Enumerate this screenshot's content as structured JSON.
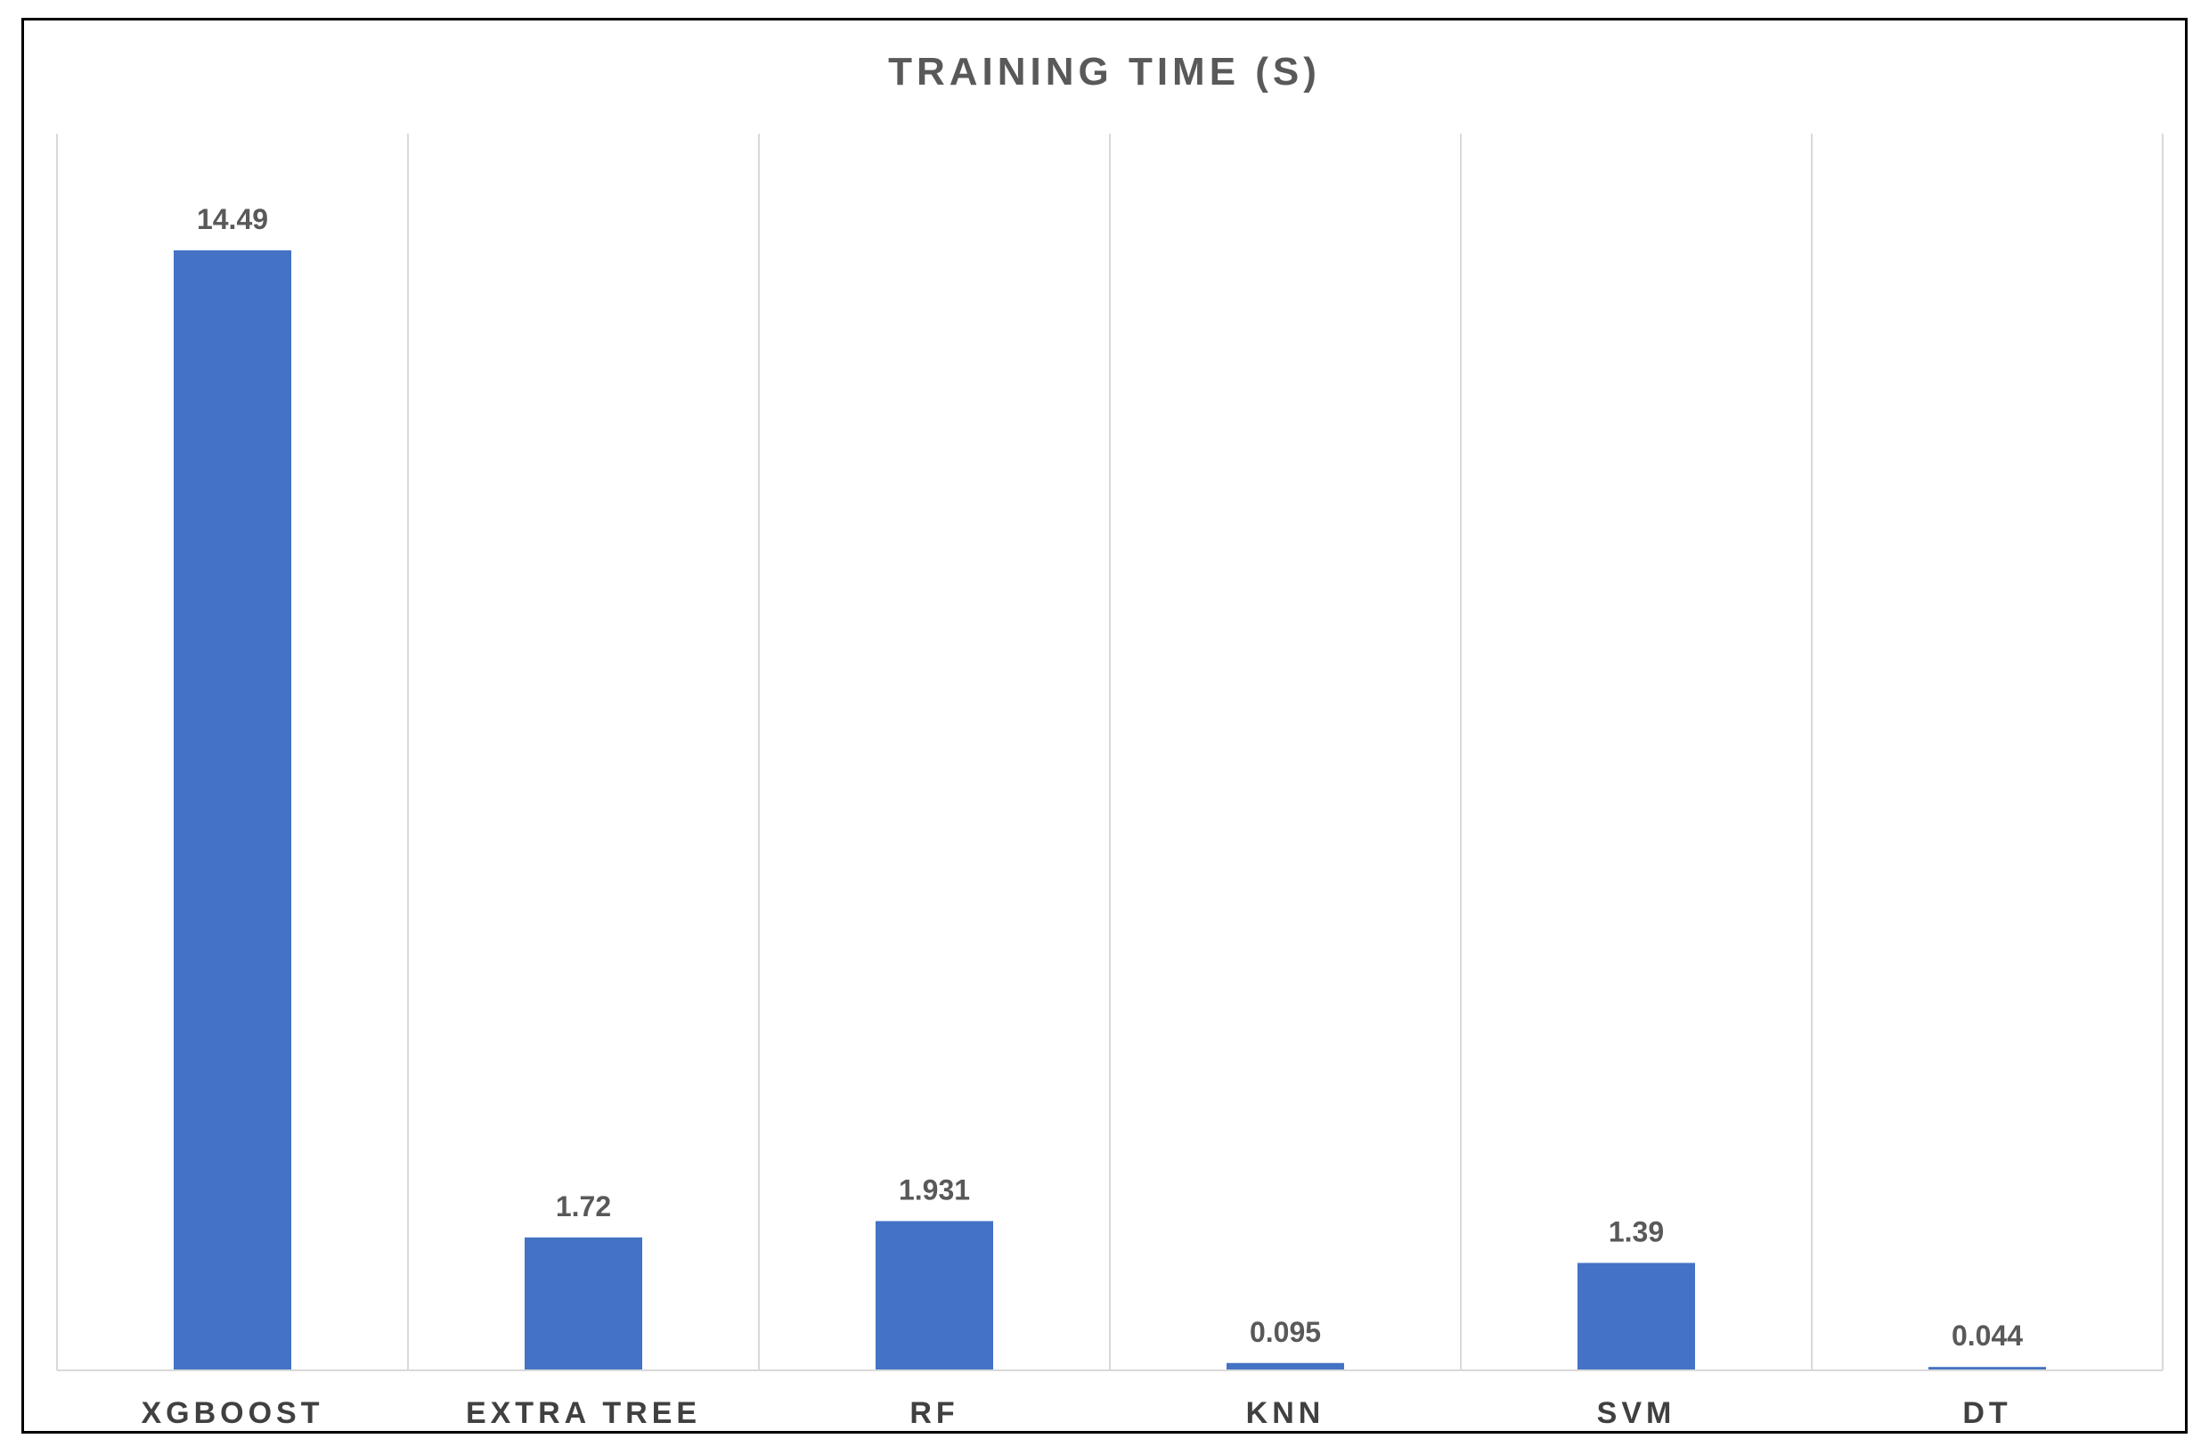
{
  "chart_data": {
    "type": "bar",
    "title": "TRAINING TIME (S)",
    "categories": [
      "XGBOOST",
      "EXTRA TREE",
      "RF",
      "KNN",
      "SVM",
      "DT"
    ],
    "values": [
      14.49,
      1.72,
      1.931,
      0.095,
      1.39,
      0.044
    ],
    "value_labels": [
      "14.49",
      "1.72",
      "1.931",
      "0.095",
      "1.39",
      "0.044"
    ],
    "xlabel": "",
    "ylabel": "",
    "ylim": [
      0,
      16
    ],
    "grid": "vertical category separators",
    "legend": "none",
    "bar_color": "#4472C4"
  }
}
